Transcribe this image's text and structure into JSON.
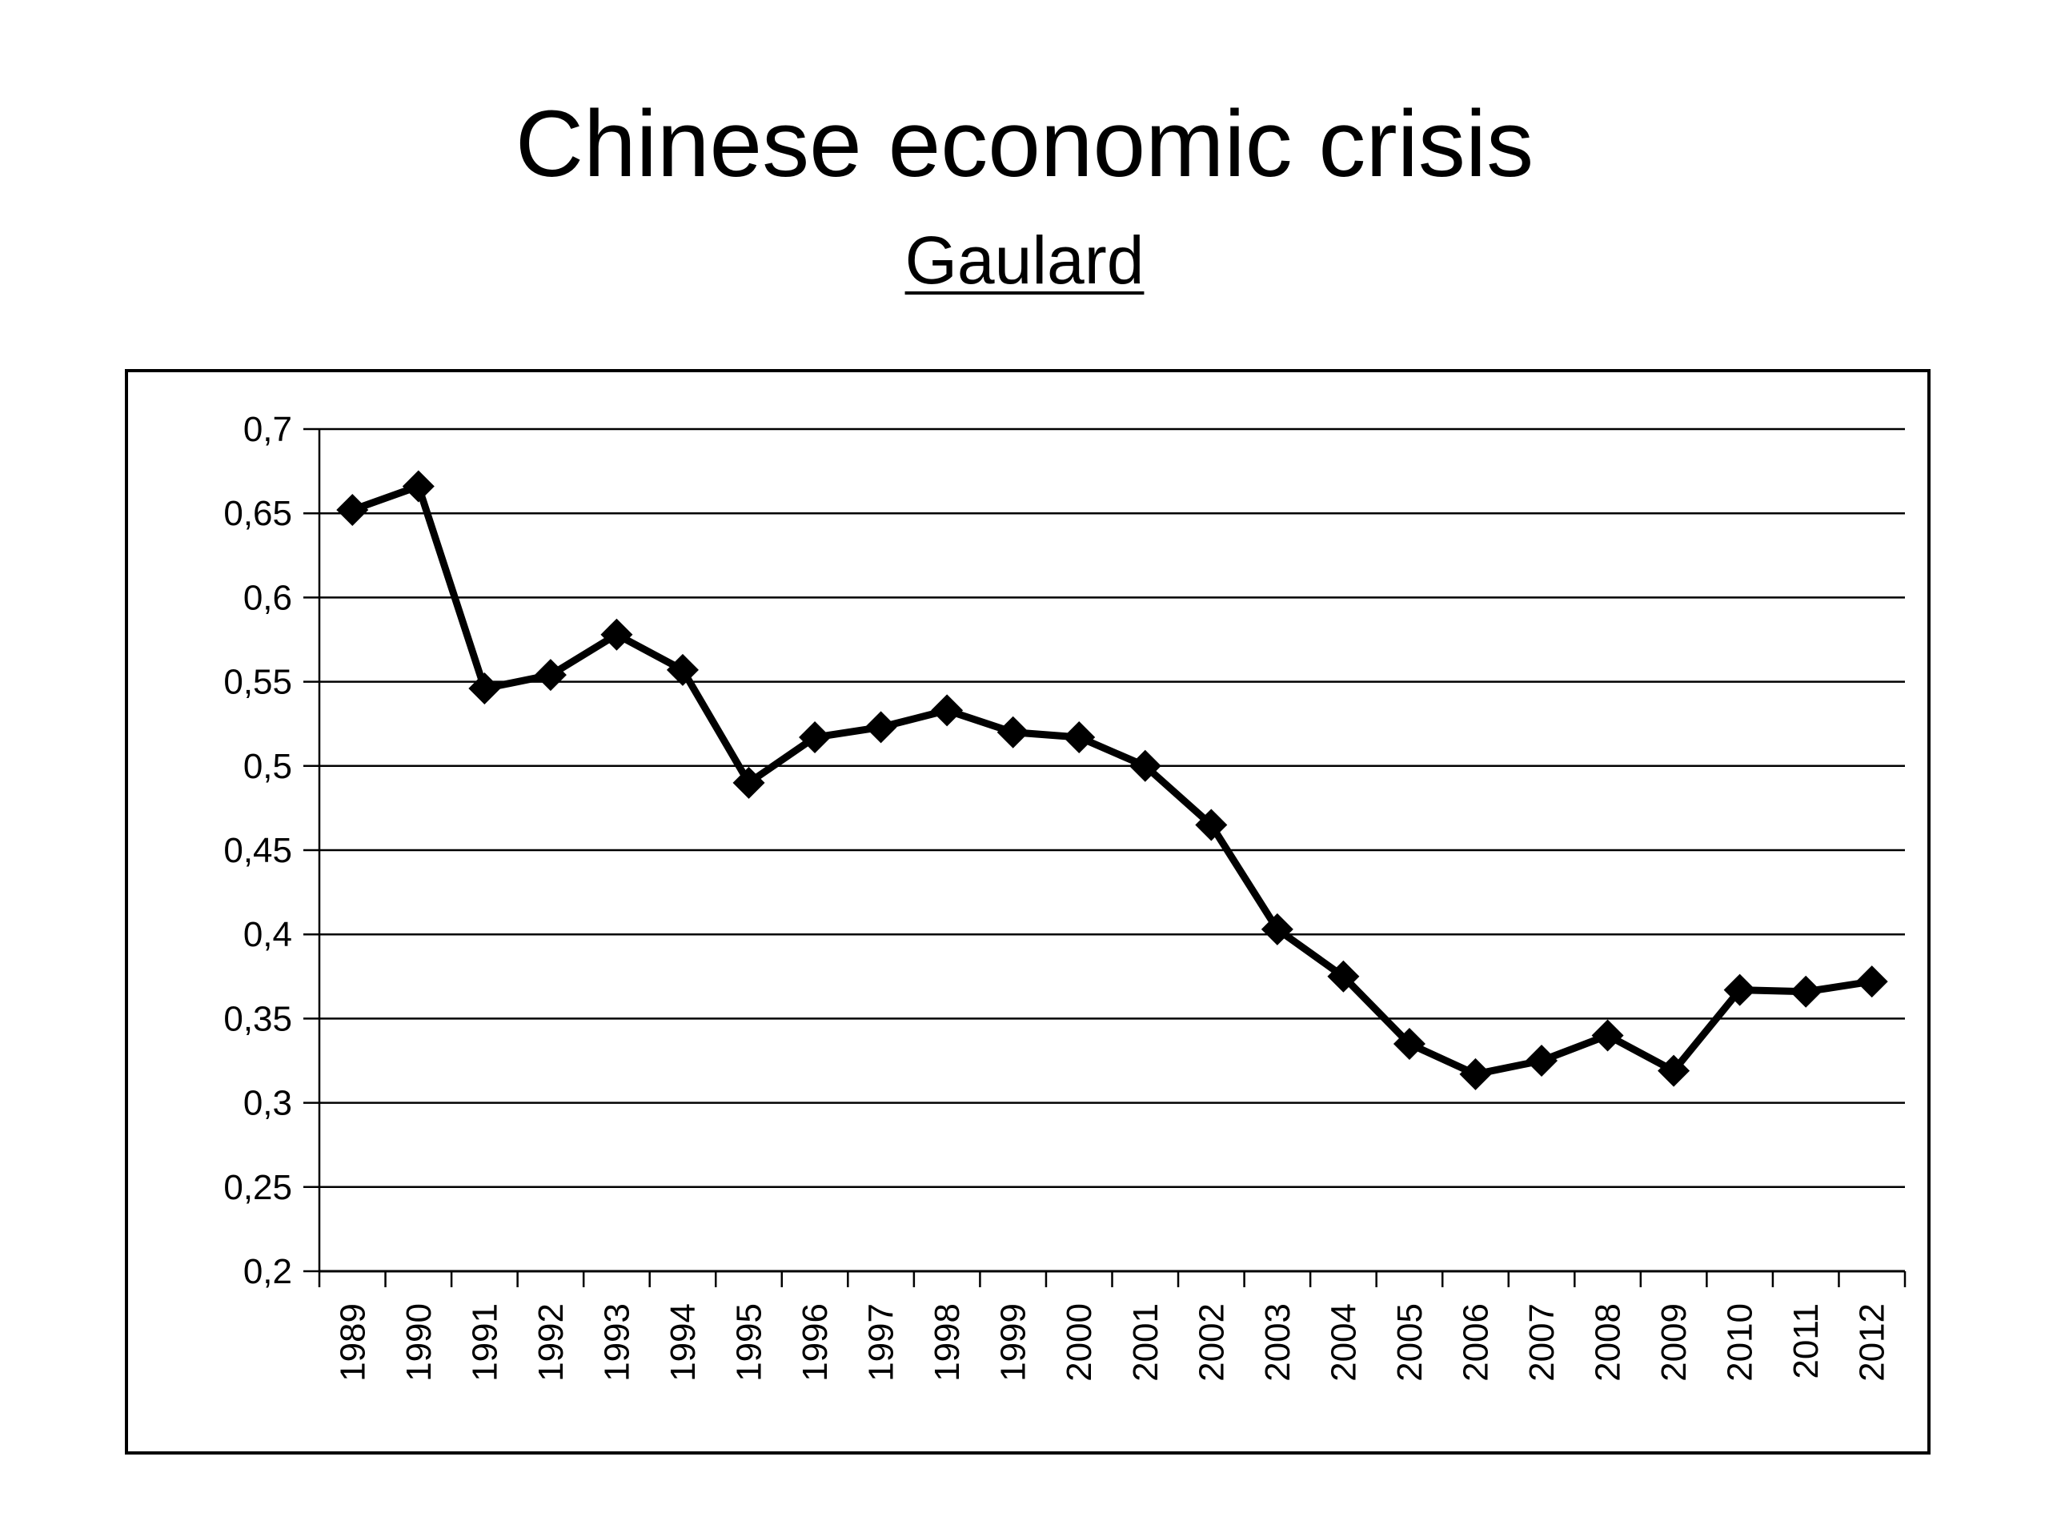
{
  "slide": {
    "title": "Chinese economic crisis",
    "subtitle": "Gaulard"
  },
  "colors": {
    "line": "#000000",
    "grid": "#000000",
    "background": "#ffffff"
  },
  "chart_data": {
    "type": "line",
    "title": "",
    "xlabel": "",
    "ylabel": "",
    "ylim": [
      0.2,
      0.7
    ],
    "grid": true,
    "legend": "none",
    "marker": "diamond",
    "y_ticks": [
      "0,2",
      "0,25",
      "0,3",
      "0,35",
      "0,4",
      "0,45",
      "0,5",
      "0,55",
      "0,6",
      "0,65",
      "0,7"
    ],
    "categories": [
      "1989",
      "1990",
      "1991",
      "1992",
      "1993",
      "1994",
      "1995",
      "1996",
      "1997",
      "1998",
      "1999",
      "2000",
      "2001",
      "2002",
      "2003",
      "2004",
      "2005",
      "2006",
      "2007",
      "2008",
      "2009",
      "2010",
      "2011",
      "2012"
    ],
    "series": [
      {
        "values": [
          0.652,
          0.666,
          0.546,
          0.554,
          0.578,
          0.557,
          0.49,
          0.517,
          0.523,
          0.533,
          0.52,
          0.517,
          0.5,
          0.465,
          0.403,
          0.375,
          0.335,
          0.317,
          0.325,
          0.34,
          0.319,
          0.367,
          0.366,
          0.372
        ]
      }
    ]
  }
}
